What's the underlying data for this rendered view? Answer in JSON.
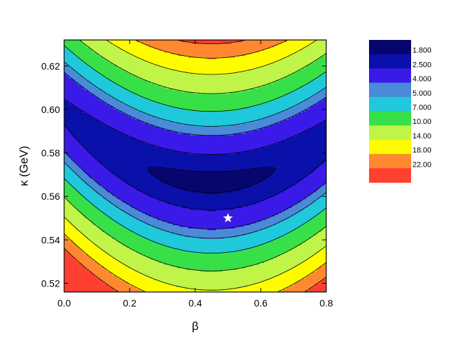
{
  "chart_data": {
    "type": "contour",
    "xlabel": "β",
    "ylabel": "κ (GeV)",
    "xlim": [
      0,
      0.8
    ],
    "ylim": [
      0.516,
      0.632
    ],
    "x_ticks": [
      {
        "value": 0.0,
        "label": "0.0"
      },
      {
        "value": 0.2,
        "label": "0.2"
      },
      {
        "value": 0.4,
        "label": "0.4"
      },
      {
        "value": 0.6,
        "label": "0.6"
      },
      {
        "value": 0.8,
        "label": "0.8"
      }
    ],
    "y_ticks": [
      {
        "value": 0.52,
        "label": "0.52"
      },
      {
        "value": 0.54,
        "label": "0.54"
      },
      {
        "value": 0.56,
        "label": "0.56"
      },
      {
        "value": 0.58,
        "label": "0.58"
      },
      {
        "value": 0.6,
        "label": "0.60"
      },
      {
        "value": 0.62,
        "label": "0.62"
      }
    ],
    "levels": [
      1.8,
      2.5,
      4.0,
      5.0,
      7.0,
      10.0,
      14.0,
      18.0,
      22.0
    ],
    "level_labels": [
      "1.800",
      "2.500",
      "4.000",
      "5.000",
      "7.000",
      "10.00",
      "14.00",
      "18.00",
      "22.00"
    ],
    "band_colors": [
      "#06066e",
      "#0a10aa",
      "#3a1ae8",
      "#4a8ad8",
      "#20c8dc",
      "#38e048",
      "#c0f448",
      "#fffc00",
      "#ff8830",
      "#ff4030"
    ],
    "minimum": {
      "beta": 0.45,
      "kappa": 0.5665
    },
    "marker": {
      "beta": 0.5,
      "kappa": 0.55,
      "symbol": "star",
      "color": "#ffffff"
    },
    "legend_position": "right"
  }
}
